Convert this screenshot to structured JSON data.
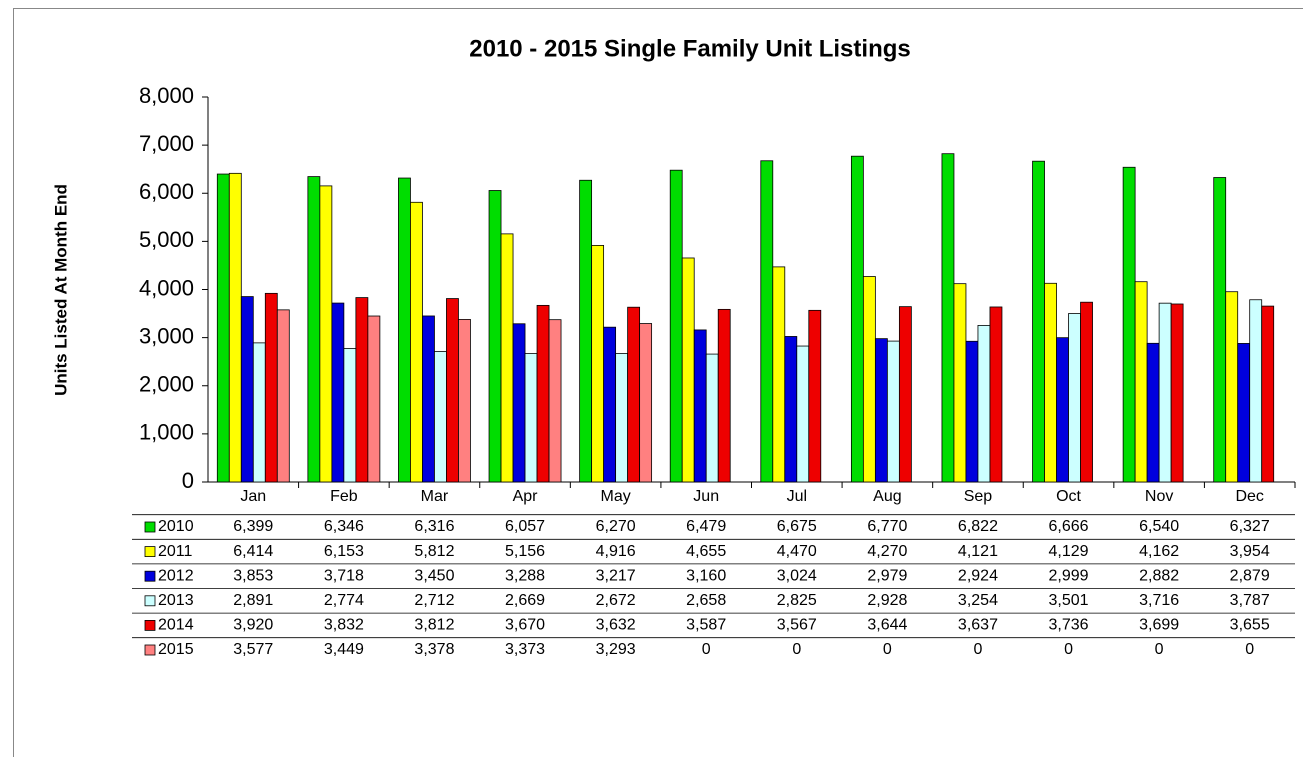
{
  "chart_data": {
    "type": "bar",
    "title": "2010 - 2015 Single Family Unit Listings",
    "y_label": "Units Listed At Month End",
    "categories": [
      "Jan",
      "Feb",
      "Mar",
      "Apr",
      "May",
      "Jun",
      "Jul",
      "Aug",
      "Sep",
      "Oct",
      "Nov",
      "Dec"
    ],
    "series": [
      {
        "name": "2010",
        "color": "#00dd00",
        "values": [
          6399,
          6346,
          6316,
          6057,
          6270,
          6479,
          6675,
          6770,
          6822,
          6666,
          6540,
          6327
        ],
        "value_labels": [
          "6,399",
          "6,346",
          "6,316",
          "6,057",
          "6,270",
          "6,479",
          "6,675",
          "6,770",
          "6,822",
          "6,666",
          "6,540",
          "6,327"
        ]
      },
      {
        "name": "2011",
        "color": "#ffff00",
        "values": [
          6414,
          6153,
          5812,
          5156,
          4916,
          4655,
          4470,
          4270,
          4121,
          4129,
          4162,
          3954
        ],
        "value_labels": [
          "6,414",
          "6,153",
          "5,812",
          "5,156",
          "4,916",
          "4,655",
          "4,470",
          "4,270",
          "4,121",
          "4,129",
          "4,162",
          "3,954"
        ]
      },
      {
        "name": "2012",
        "color": "#0000dd",
        "values": [
          3853,
          3718,
          3450,
          3288,
          3217,
          3160,
          3024,
          2979,
          2924,
          2999,
          2882,
          2879
        ],
        "value_labels": [
          "3,853",
          "3,718",
          "3,450",
          "3,288",
          "3,217",
          "3,160",
          "3,024",
          "2,979",
          "2,924",
          "2,999",
          "2,882",
          "2,879"
        ]
      },
      {
        "name": "2013",
        "color": "#ccffff",
        "values": [
          2891,
          2774,
          2712,
          2669,
          2672,
          2658,
          2825,
          2928,
          3254,
          3501,
          3716,
          3787
        ],
        "value_labels": [
          "2,891",
          "2,774",
          "2,712",
          "2,669",
          "2,672",
          "2,658",
          "2,825",
          "2,928",
          "3,254",
          "3,501",
          "3,716",
          "3,787"
        ]
      },
      {
        "name": "2014",
        "color": "#ee0000",
        "values": [
          3920,
          3832,
          3812,
          3670,
          3632,
          3587,
          3567,
          3644,
          3637,
          3736,
          3699,
          3655
        ],
        "value_labels": [
          "3,920",
          "3,832",
          "3,812",
          "3,670",
          "3,632",
          "3,587",
          "3,567",
          "3,644",
          "3,637",
          "3,736",
          "3,699",
          "3,655"
        ]
      },
      {
        "name": "2015",
        "color": "#ff8080",
        "values": [
          3577,
          3449,
          3378,
          3373,
          3293,
          0,
          0,
          0,
          0,
          0,
          0,
          0
        ],
        "value_labels": [
          "3,577",
          "3,449",
          "3,378",
          "3,373",
          "3,293",
          "0",
          "0",
          "0",
          "0",
          "0",
          "0",
          "0"
        ]
      }
    ],
    "ylim": [
      0,
      8000
    ],
    "yticks": [
      0,
      {
        "value": 1000,
        "label": "1,000"
      },
      {
        "value": 2000,
        "label": "2,000"
      },
      {
        "value": 3000,
        "label": "3,000"
      },
      {
        "value": 4000,
        "label": "4,000"
      },
      {
        "value": 5000,
        "label": "5,000"
      },
      {
        "value": 6000,
        "label": "6,000"
      },
      {
        "value": 7000,
        "label": "7,000"
      },
      {
        "value": 8000,
        "label": "8,000"
      }
    ],
    "grid": false
  }
}
